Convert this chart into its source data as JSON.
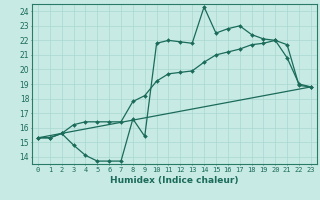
{
  "xlabel": "Humidex (Indice chaleur)",
  "bg_color": "#c8eae4",
  "grid_color": "#a8d8d0",
  "line_color": "#1a6b5a",
  "border_color": "#2a7a68",
  "xlabel_bg": "#2a7a68",
  "xlim": [
    -0.5,
    23.5
  ],
  "ylim": [
    13.5,
    24.5
  ],
  "xticks": [
    0,
    1,
    2,
    3,
    4,
    5,
    6,
    7,
    8,
    9,
    10,
    11,
    12,
    13,
    14,
    15,
    16,
    17,
    18,
    19,
    20,
    21,
    22,
    23
  ],
  "yticks": [
    14,
    15,
    16,
    17,
    18,
    19,
    20,
    21,
    22,
    23,
    24
  ],
  "line1_x": [
    0,
    1,
    2,
    3,
    4,
    5,
    6,
    7,
    8,
    9,
    10,
    11,
    12,
    13,
    14,
    15,
    16,
    17,
    18,
    19,
    20,
    21,
    22,
    23
  ],
  "line1_y": [
    15.3,
    15.3,
    15.6,
    14.8,
    14.1,
    13.7,
    13.7,
    13.7,
    16.6,
    15.4,
    21.8,
    22.0,
    21.9,
    21.8,
    24.3,
    22.5,
    22.8,
    23.0,
    22.4,
    22.1,
    22.0,
    20.8,
    19.0,
    18.8
  ],
  "line2_x": [
    0,
    1,
    2,
    3,
    4,
    5,
    6,
    7,
    8,
    9,
    10,
    11,
    12,
    13,
    14,
    15,
    16,
    17,
    18,
    19,
    20,
    21,
    22,
    23
  ],
  "line2_y": [
    15.3,
    15.3,
    15.6,
    16.2,
    16.4,
    16.4,
    16.4,
    16.4,
    17.8,
    18.2,
    19.2,
    19.7,
    19.8,
    19.9,
    20.5,
    21.0,
    21.2,
    21.4,
    21.7,
    21.8,
    22.0,
    21.7,
    18.9,
    18.8
  ],
  "line3_x": [
    0,
    23
  ],
  "line3_y": [
    15.3,
    18.8
  ]
}
